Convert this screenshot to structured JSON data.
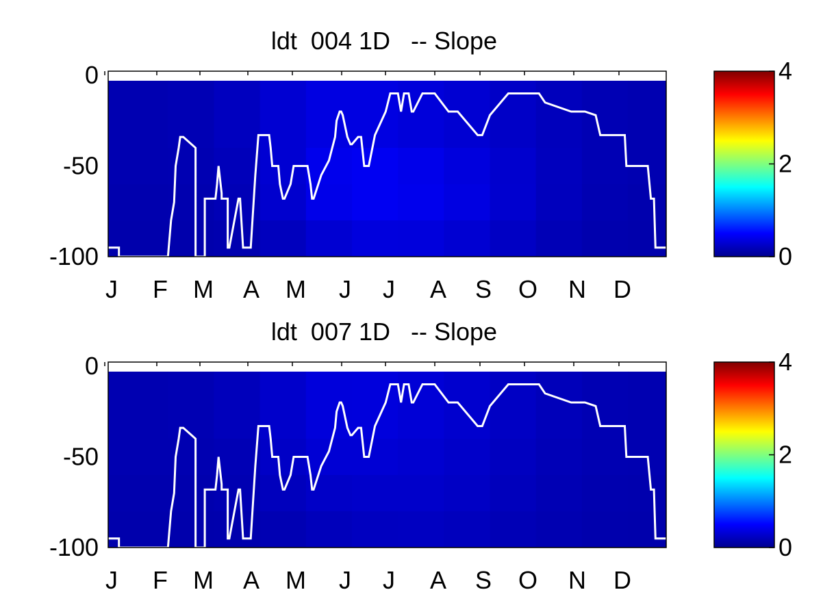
{
  "chart_data": [
    {
      "type": "heatmap",
      "title": "ldt  004 1D   -- Slope",
      "xlabel": "",
      "ylabel": "",
      "x_tick_labels": [
        "J",
        "F",
        "M",
        "A",
        "M",
        "J",
        "J",
        "A",
        "S",
        "O",
        "N",
        "D"
      ],
      "y_ticks": [
        0,
        -50,
        -100
      ],
      "xlim": [
        1,
        365
      ],
      "ylim": [
        -100,
        0
      ],
      "colorbar": {
        "range": [
          0,
          4
        ],
        "ticks": [
          0,
          2,
          4
        ],
        "colormap": "jet"
      },
      "heatmap": {
        "description_columns_x": [
          1,
          40,
          70,
          100,
          130,
          160,
          190,
          220,
          250,
          280,
          310,
          340,
          365
        ],
        "rows_depth": [
          {
            "y_top": -3,
            "y_bottom": -40,
            "values": [
              0.15,
              0.15,
              0.18,
              0.25,
              0.35,
              0.38,
              0.35,
              0.32,
              0.28,
              0.22,
              0.18,
              0.15,
              0.15
            ]
          },
          {
            "y_top": -40,
            "y_bottom": -60,
            "values": [
              0.15,
              0.15,
              0.16,
              0.22,
              0.38,
              0.45,
              0.43,
              0.38,
              0.32,
              0.24,
              0.18,
              0.15,
              0.15
            ]
          },
          {
            "y_top": -60,
            "y_bottom": -80,
            "values": [
              0.14,
              0.14,
              0.15,
              0.2,
              0.36,
              0.44,
              0.44,
              0.4,
              0.33,
              0.24,
              0.17,
              0.14,
              0.14
            ]
          },
          {
            "y_top": -80,
            "y_bottom": -100,
            "values": [
              0.13,
              0.13,
              0.13,
              0.16,
              0.26,
              0.34,
              0.36,
              0.33,
              0.27,
              0.2,
              0.15,
              0.13,
              0.13
            ]
          }
        ]
      },
      "line": {
        "color": "#ffffff",
        "x": [
          1,
          8,
          8,
          40,
          42,
          44,
          45,
          47,
          48,
          50,
          58,
          58,
          64,
          64,
          70,
          71,
          72,
          73,
          75,
          75,
          79,
          79,
          80,
          86,
          87,
          89,
          90,
          90,
          94,
          94,
          97,
          99,
          100,
          105,
          106,
          107,
          108,
          110,
          111,
          112,
          113,
          115,
          116,
          120,
          122,
          124,
          129,
          131,
          133,
          134,
          135,
          140,
          145,
          149,
          150,
          152,
          153,
          154,
          157,
          159,
          160,
          164,
          166,
          168,
          171,
          175,
          182,
          185,
          190,
          192,
          194,
          195,
          197,
          199,
          200,
          206,
          210,
          214,
          223,
          229,
          242,
          245,
          250,
          262,
          272,
          276,
          282,
          286,
          303,
          303,
          312,
          319,
          322,
          327,
          330,
          338,
          339,
          345,
          353,
          355,
          357,
          358,
          360,
          362,
          365
        ],
        "y": [
          -95,
          -95,
          -100,
          -100,
          -80,
          -70,
          -50,
          -40,
          -34,
          -34,
          -40,
          -100,
          -100,
          -68,
          -68,
          -68,
          -60,
          -50,
          -65,
          -68,
          -68,
          -95,
          -95,
          -68,
          -68,
          -95,
          -95,
          -95,
          -95,
          -95,
          -55,
          -33,
          -33,
          -33,
          -33,
          -40,
          -50,
          -50,
          -50,
          -50,
          -60,
          -68,
          -68,
          -60,
          -50,
          -50,
          -50,
          -50,
          -60,
          -68,
          -68,
          -55,
          -47,
          -34,
          -25,
          -20,
          -20,
          -22,
          -34,
          -38,
          -38,
          -34,
          -34,
          -50,
          -50,
          -33,
          -20,
          -10,
          -10,
          -20,
          -10,
          -10,
          -10,
          -20,
          -20,
          -10,
          -10,
          -10,
          -20,
          -20,
          -33,
          -33,
          -22,
          -10,
          -10,
          -10,
          -10,
          -15,
          -20,
          -20,
          -20,
          -22,
          -33,
          -33,
          -33,
          -33,
          -50,
          -50,
          -50,
          -68,
          -68,
          -95,
          -95,
          -95,
          -95
        ],
        "note": ""
      }
    },
    {
      "type": "heatmap",
      "title": "ldt  007 1D   -- Slope",
      "xlabel": "",
      "ylabel": "",
      "x_tick_labels": [
        "J",
        "F",
        "M",
        "A",
        "M",
        "J",
        "J",
        "A",
        "S",
        "O",
        "N",
        "D"
      ],
      "y_ticks": [
        0,
        -50,
        -100
      ],
      "xlim": [
        1,
        365
      ],
      "ylim": [
        -100,
        0
      ],
      "colorbar": {
        "range": [
          0,
          4
        ],
        "ticks": [
          0,
          2,
          4
        ],
        "colormap": "jet"
      },
      "heatmap": {
        "description_columns_x": [
          1,
          40,
          70,
          100,
          130,
          160,
          190,
          220,
          250,
          280,
          310,
          340,
          365
        ],
        "rows_depth": [
          {
            "y_top": -3,
            "y_bottom": -40,
            "values": [
              0.15,
              0.15,
              0.17,
              0.22,
              0.32,
              0.36,
              0.33,
              0.3,
              0.26,
              0.21,
              0.17,
              0.15,
              0.15
            ]
          },
          {
            "y_top": -40,
            "y_bottom": -60,
            "values": [
              0.15,
              0.15,
              0.15,
              0.19,
              0.3,
              0.32,
              0.3,
              0.28,
              0.24,
              0.2,
              0.16,
              0.15,
              0.15
            ]
          },
          {
            "y_top": -60,
            "y_bottom": -80,
            "values": [
              0.14,
              0.14,
              0.14,
              0.17,
              0.24,
              0.26,
              0.27,
              0.26,
              0.22,
              0.18,
              0.15,
              0.14,
              0.14
            ]
          },
          {
            "y_top": -80,
            "y_bottom": -100,
            "values": [
              0.13,
              0.13,
              0.13,
              0.14,
              0.18,
              0.21,
              0.23,
              0.22,
              0.19,
              0.16,
              0.14,
              0.13,
              0.13
            ]
          }
        ]
      },
      "line": {
        "color": "#ffffff",
        "x": [
          1,
          8,
          8,
          40,
          42,
          44,
          45,
          47,
          48,
          50,
          58,
          58,
          64,
          64,
          70,
          71,
          72,
          73,
          75,
          75,
          79,
          79,
          80,
          86,
          87,
          89,
          90,
          90,
          94,
          94,
          97,
          99,
          100,
          105,
          106,
          107,
          108,
          110,
          111,
          112,
          113,
          115,
          116,
          120,
          122,
          124,
          129,
          131,
          133,
          134,
          135,
          140,
          145,
          149,
          150,
          152,
          153,
          154,
          157,
          159,
          160,
          164,
          166,
          168,
          171,
          175,
          182,
          185,
          190,
          192,
          194,
          195,
          197,
          199,
          200,
          206,
          210,
          214,
          223,
          229,
          242,
          245,
          250,
          262,
          272,
          276,
          282,
          286,
          303,
          303,
          312,
          319,
          322,
          327,
          330,
          338,
          339,
          345,
          353,
          355,
          357,
          358,
          360,
          362,
          365
        ],
        "y": [
          -95,
          -95,
          -100,
          -100,
          -80,
          -70,
          -50,
          -40,
          -34,
          -34,
          -40,
          -100,
          -100,
          -68,
          -68,
          -68,
          -60,
          -50,
          -65,
          -68,
          -68,
          -95,
          -95,
          -68,
          -68,
          -95,
          -95,
          -95,
          -95,
          -95,
          -55,
          -33,
          -33,
          -33,
          -33,
          -40,
          -50,
          -50,
          -50,
          -50,
          -60,
          -68,
          -68,
          -60,
          -50,
          -50,
          -50,
          -50,
          -60,
          -68,
          -68,
          -55,
          -47,
          -34,
          -25,
          -20,
          -20,
          -22,
          -34,
          -38,
          -38,
          -34,
          -34,
          -50,
          -50,
          -33,
          -20,
          -10,
          -10,
          -20,
          -10,
          -10,
          -10,
          -20,
          -20,
          -10,
          -10,
          -10,
          -20,
          -20,
          -33,
          -33,
          -22,
          -10,
          -10,
          -10,
          -10,
          -15,
          -20,
          -20,
          -20,
          -22,
          -33,
          -33,
          -33,
          -33,
          -50,
          -50,
          -50,
          -68,
          -68,
          -95,
          -95,
          -95,
          -95
        ],
        "note": ""
      }
    }
  ]
}
